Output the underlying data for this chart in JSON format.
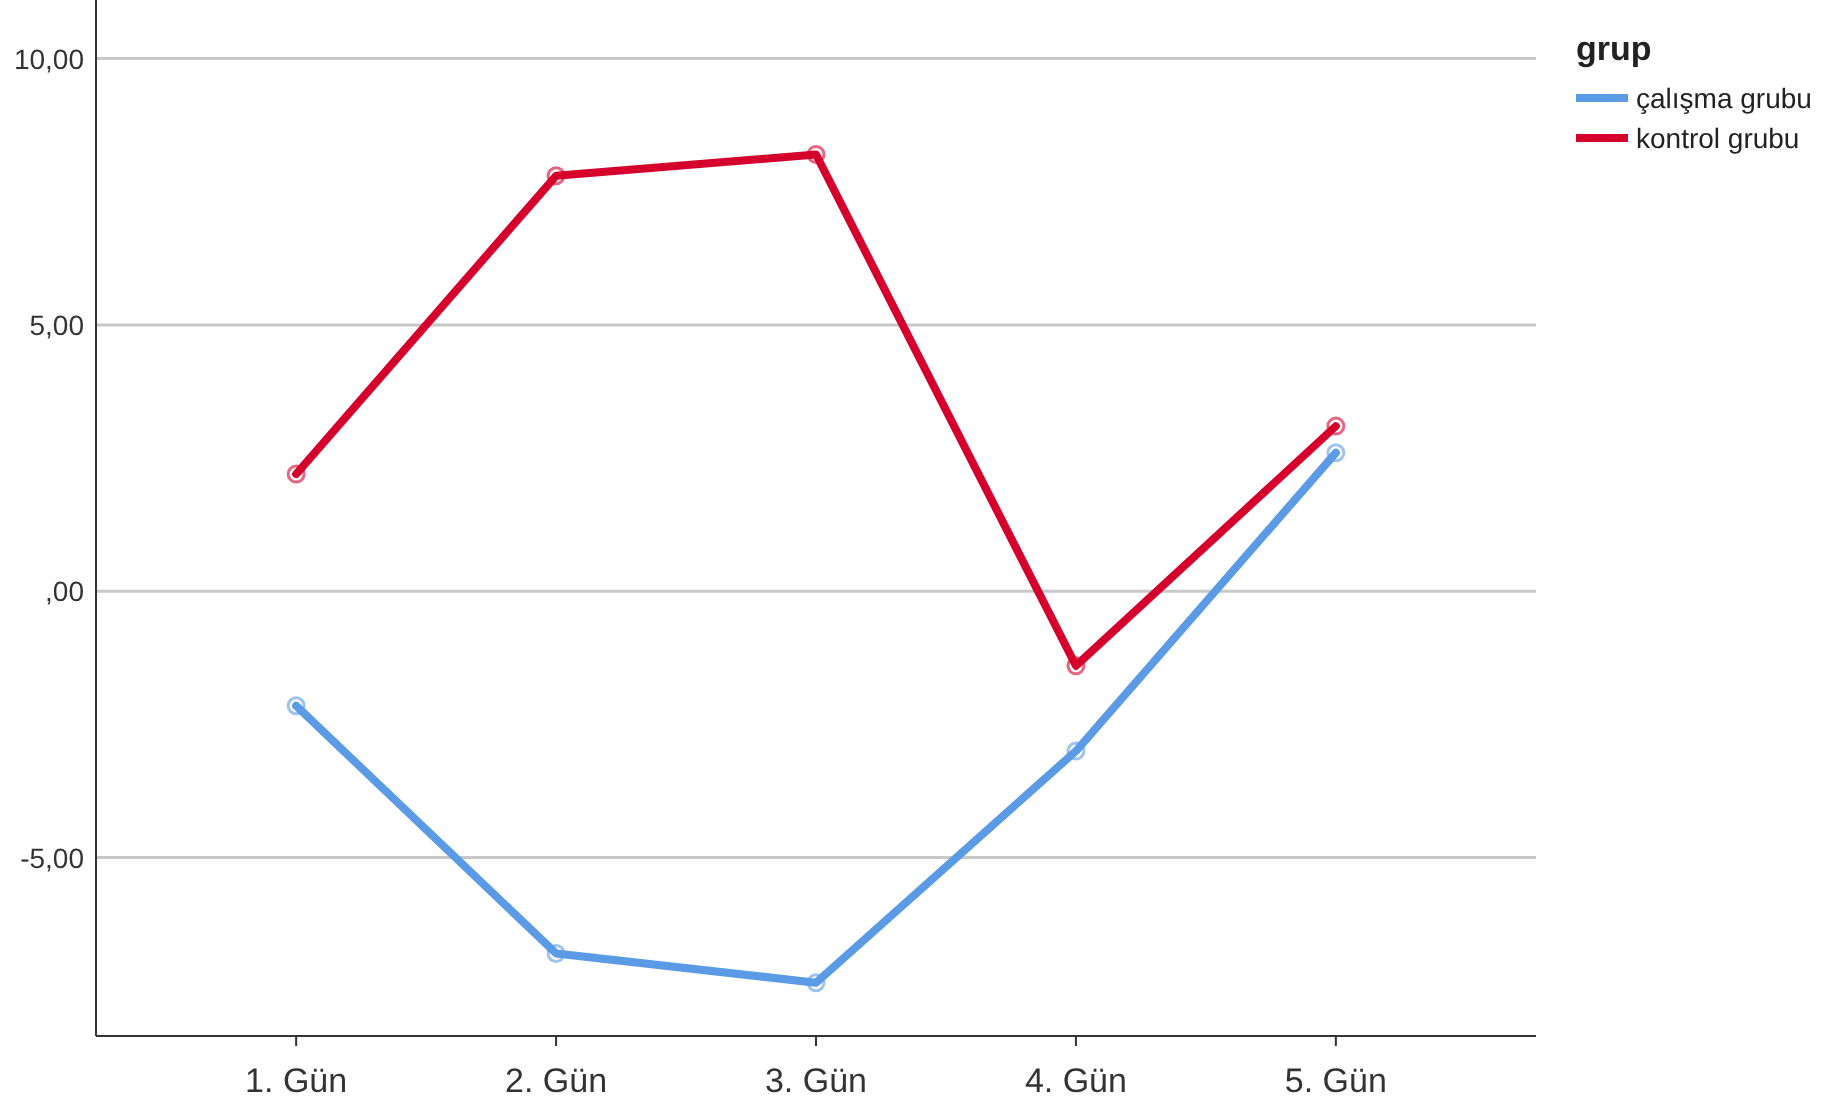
{
  "chart_data": {
    "type": "line",
    "categories": [
      "1. Gün",
      "2. Gün",
      "3. Gün",
      "4. Gün",
      "5. Gün"
    ],
    "series": [
      {
        "name": "çalışma grubu",
        "color": "#5b9be6",
        "values": [
          -2.15,
          -6.8,
          -7.35,
          -3.0,
          2.6
        ]
      },
      {
        "name": "kontrol grubu",
        "color": "#d5002c",
        "values": [
          2.2,
          7.8,
          8.2,
          -1.4,
          3.1
        ]
      }
    ],
    "ylim": [
      -8.35,
      11.1
    ],
    "yticks": [
      {
        "value": 10,
        "label": "10,00"
      },
      {
        "value": 5,
        "label": "5,00"
      },
      {
        "value": 0,
        "label": ",00"
      },
      {
        "value": -5,
        "label": "-5,00"
      }
    ],
    "grid": "y",
    "legend": "top right",
    "legend_title": "grup",
    "marker": "circle",
    "line_style": "solid"
  }
}
